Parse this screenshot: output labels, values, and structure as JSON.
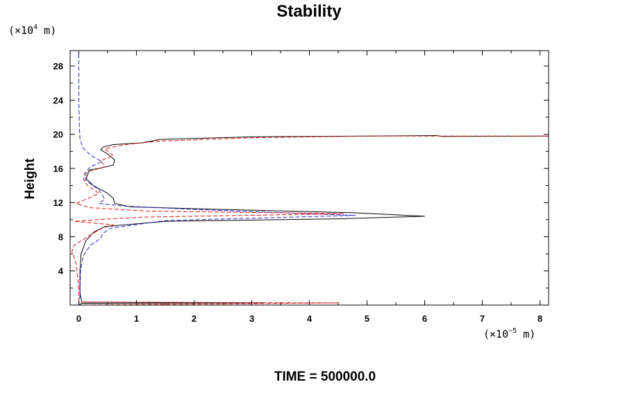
{
  "chart_data": {
    "type": "line",
    "title": "Stability",
    "ylabel": "Height",
    "xlabel": "",
    "x_unit": {
      "prefix": "(×10",
      "exp": "−5",
      "suffix": " m)"
    },
    "y_unit": {
      "prefix": "(×10",
      "exp": "4",
      "suffix": " m)"
    },
    "xlim": [
      -0.15,
      8.15
    ],
    "ylim": [
      0,
      29.8
    ],
    "x_ticks": [
      "0",
      "1",
      "2",
      "3",
      "4",
      "5",
      "6",
      "7",
      "8"
    ],
    "y_ticks": [
      "4",
      "8",
      "12",
      "16",
      "20",
      "24",
      "28"
    ],
    "series": [
      {
        "color": "#000000",
        "style": "solid",
        "points": [
          [
            0.0,
            0.0
          ],
          [
            0.05,
            0.2
          ],
          [
            3.2,
            0.25
          ],
          [
            0.05,
            0.35
          ],
          [
            0.02,
            1.5
          ],
          [
            0.02,
            4.0
          ],
          [
            0.04,
            6.0
          ],
          [
            0.12,
            7.5
          ],
          [
            0.25,
            8.5
          ],
          [
            0.45,
            9.2
          ],
          [
            1.5,
            9.8
          ],
          [
            4.5,
            10.1
          ],
          [
            6.0,
            10.4
          ],
          [
            4.8,
            10.8
          ],
          [
            2.5,
            11.2
          ],
          [
            0.9,
            11.5
          ],
          [
            0.62,
            11.9
          ],
          [
            0.6,
            12.5
          ],
          [
            0.5,
            13.1
          ],
          [
            0.25,
            14.0
          ],
          [
            0.13,
            14.8
          ],
          [
            0.18,
            15.8
          ],
          [
            0.42,
            16.1
          ],
          [
            0.6,
            16.4
          ],
          [
            0.62,
            17.0
          ],
          [
            0.52,
            17.6
          ],
          [
            0.38,
            18.2
          ],
          [
            0.42,
            18.5
          ],
          [
            0.6,
            18.8
          ],
          [
            1.1,
            19.0
          ],
          [
            1.4,
            19.4
          ],
          [
            3.0,
            19.7
          ],
          [
            5.0,
            19.8
          ],
          [
            6.2,
            19.85
          ],
          [
            6.3,
            19.75
          ],
          [
            8.2,
            19.8
          ]
        ]
      },
      {
        "color": "#2222cc",
        "style": "dashed",
        "points": [
          [
            0.0,
            0.0
          ],
          [
            0.02,
            1.0
          ],
          [
            0.03,
            4.0
          ],
          [
            0.08,
            5.8
          ],
          [
            0.2,
            7.0
          ],
          [
            0.38,
            7.8
          ],
          [
            0.42,
            8.4
          ],
          [
            0.55,
            9.0
          ],
          [
            1.5,
            9.9
          ],
          [
            4.8,
            10.5
          ],
          [
            2.0,
            11.2
          ],
          [
            0.75,
            11.6
          ],
          [
            0.35,
            11.9
          ],
          [
            0.45,
            12.4
          ],
          [
            0.35,
            13.5
          ],
          [
            0.12,
            14.6
          ],
          [
            0.1,
            15.4
          ],
          [
            0.2,
            16.2
          ],
          [
            0.4,
            16.8
          ],
          [
            0.22,
            17.5
          ],
          [
            0.07,
            18.4
          ],
          [
            0.02,
            19.5
          ],
          [
            0.01,
            21.0
          ],
          [
            0.0,
            24.0
          ],
          [
            0.0,
            28.0
          ],
          [
            0.0,
            29.8
          ]
        ]
      },
      {
        "color": "#dd1111",
        "style": "dashed",
        "points": [
          [
            0.0,
            0.0
          ],
          [
            4.5,
            0.25
          ],
          [
            0.0,
            0.35
          ],
          [
            0.0,
            2.0
          ],
          [
            -0.05,
            5.0
          ],
          [
            -0.12,
            6.3
          ],
          [
            -0.08,
            7.0
          ],
          [
            0.2,
            8.2
          ],
          [
            0.4,
            9.0
          ],
          [
            0.6,
            9.4
          ],
          [
            -0.08,
            9.8
          ],
          [
            0.55,
            10.1
          ],
          [
            1.1,
            10.3
          ],
          [
            4.6,
            10.7
          ],
          [
            1.2,
            11.0
          ],
          [
            0.2,
            11.4
          ],
          [
            -0.05,
            11.9
          ],
          [
            0.2,
            12.6
          ],
          [
            0.35,
            13.1
          ],
          [
            0.15,
            14.0
          ],
          [
            0.08,
            14.8
          ],
          [
            0.15,
            15.6
          ],
          [
            0.45,
            16.2
          ],
          [
            0.38,
            16.9
          ],
          [
            0.6,
            17.5
          ],
          [
            0.45,
            18.3
          ],
          [
            0.8,
            18.8
          ],
          [
            1.4,
            19.2
          ],
          [
            3.0,
            19.6
          ],
          [
            5.0,
            19.8
          ],
          [
            8.2,
            19.8
          ]
        ]
      }
    ]
  },
  "footer": {
    "time_label": "TIME = 500000.0"
  }
}
